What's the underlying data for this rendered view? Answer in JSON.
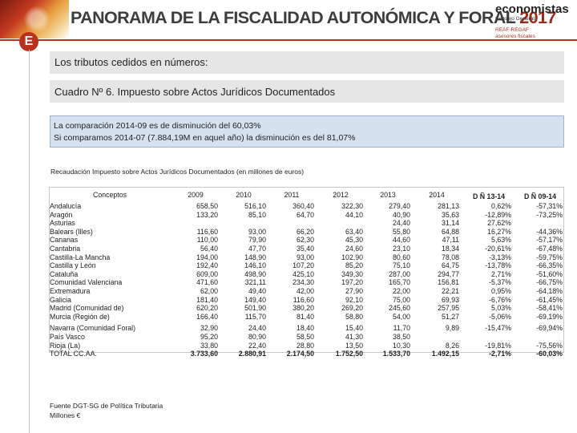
{
  "header": {
    "title_main": "PANORAMA DE LA FISCALIDAD AUTONÓMICA Y FORAL",
    "title_year": "2017",
    "brand_name": "economistas",
    "brand_sub": "Consejo General",
    "brand_reaf": "REAF-REGAF",
    "brand_reaf_sub": "asesores fiscales",
    "logo_letter": "E"
  },
  "section_title": "Los tributos cedidos en números:",
  "table_title": "Cuadro Nº 6. Impuesto sobre Actos Jurídicos Documentados",
  "summary": {
    "line1": "La comparación 2014-09 es de disminución del 60,03%",
    "line2": "Si comparamos 2014-07 (7.884,19M en aquel año) la disminución es del 81,07%"
  },
  "table_subtitle": "Recaudación Impuesto sobre Actos Jurídicos Documentados (en millones de euros)",
  "table": {
    "headers": [
      "Conceptos",
      "2009",
      "2010",
      "2011",
      "2012",
      "2013",
      "2014",
      "D Ñ 13-14",
      "D Ñ 09-14"
    ],
    "rows": [
      [
        "Andalucía",
        "658,50",
        "516,10",
        "360,40",
        "322,30",
        "279,40",
        "281,13",
        "0,62%",
        "-57,31%"
      ],
      [
        "Aragón",
        "133,20",
        "85,10",
        "64,70",
        "44,10",
        "40,90",
        "35,63",
        "-12,89%",
        "-73,25%"
      ],
      [
        "Asturias",
        "",
        "",
        "",
        "",
        "24,40",
        "31,14",
        "27,62%",
        ""
      ],
      [
        "Balears (Illes)",
        "116,60",
        "93,00",
        "66,20",
        "63,40",
        "55,80",
        "64,88",
        "16,27%",
        "-44,36%"
      ],
      [
        "Canarias",
        "110,00",
        "79,90",
        "62,30",
        "45,30",
        "44,60",
        "47,11",
        "5,63%",
        "-57,17%"
      ],
      [
        "Cantabria",
        "56,40",
        "47,70",
        "35,40",
        "24,60",
        "23,10",
        "18,34",
        "-20,61%",
        "-67,48%"
      ],
      [
        "Castilla-La Mancha",
        "194,00",
        "148,90",
        "93,00",
        "102,90",
        "80,60",
        "78,08",
        "-3,13%",
        "-59,75%"
      ],
      [
        "Castilla y León",
        "192,40",
        "146,10",
        "107,20",
        "85,20",
        "75,10",
        "64,75",
        "-13,78%",
        "-66,35%"
      ],
      [
        "Cataluña",
        "609,00",
        "498,90",
        "425,10",
        "349,30",
        "287,00",
        "294,77",
        "2,71%",
        "-51,60%"
      ],
      [
        "Comunidad Valenciana",
        "471,60",
        "321,11",
        "234,30",
        "197,20",
        "165,70",
        "156,81",
        "-5,37%",
        "-66,75%"
      ],
      [
        "Extremadura",
        "62,00",
        "49,40",
        "42,00",
        "27,90",
        "22,00",
        "22,21",
        "0,95%",
        "-64,18%"
      ],
      [
        "Galicia",
        "181,40",
        "149,40",
        "116,60",
        "92,10",
        "75,00",
        "69,93",
        "-6,76%",
        "-61,45%"
      ],
      [
        "Madrid (Comunidad de)",
        "620,20",
        "501,90",
        "380,20",
        "269,20",
        "245,60",
        "257,95",
        "5,03%",
        "-58,41%"
      ],
      [
        "Murcia (Región de)",
        "166,40",
        "115,70",
        "81,40",
        "58,80",
        "54,00",
        "51,27",
        "-5,06%",
        "-69,19%"
      ]
    ],
    "rows_b": [
      [
        "Navarra (Comunidad Foral)",
        "32,90",
        "24,40",
        "18,40",
        "15,40",
        "11,70",
        "9,89",
        "-15,47%",
        "-69,94%"
      ],
      [
        "País Vasco",
        "95,20",
        "80,90",
        "58,50",
        "41,30",
        "38,50",
        "",
        "",
        ""
      ],
      [
        "Rioja (La)",
        "33,80",
        "22,40",
        "28,80",
        "13,50",
        "10,30",
        "8,26",
        "-19,81%",
        "-75,56%"
      ],
      [
        "TOTAL CC.AA.",
        "3.733,60",
        "2.880,91",
        "2.174,50",
        "1.752,50",
        "1.533,70",
        "1.492,15",
        "-2,71%",
        "-60,03%"
      ]
    ]
  },
  "footer": {
    "line1": "Fuente DGT-SG de Política Tributaria",
    "line2": "Millones €"
  }
}
